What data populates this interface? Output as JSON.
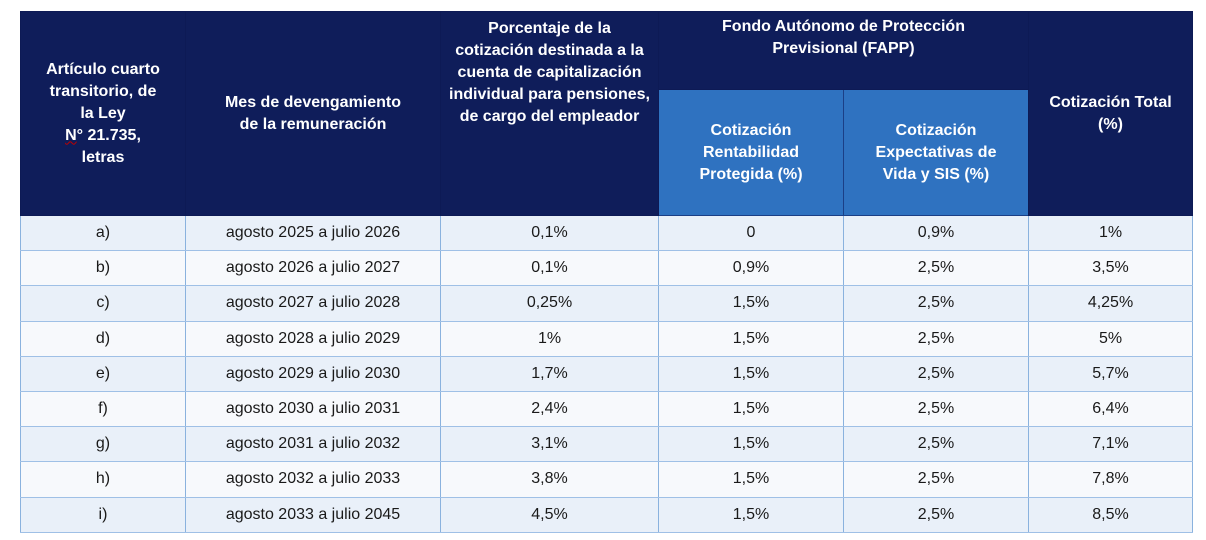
{
  "headers": {
    "col1_line1": "Artículo cuarto",
    "col1_line2": "transitorio, de",
    "col1_line3": "la Ley",
    "col1_line4_prefix": "N",
    "col1_line4_rest": "° 21.735,",
    "col1_line5": "letras",
    "col2": "Mes de devengamiento de la remuneración",
    "col3": "Porcentaje de la cotización destinada a la cuenta de capitalización individual para pensiones, de cargo del empleador",
    "fapp_group": "Fondo Autónomo de Protección Previsional (FAPP)",
    "fapp_sub1": "Cotización Rentabilidad Protegida (%)",
    "fapp_sub2": "Cotización Expectativas de Vida y SIS (%)",
    "total": "Cotización Total (%)"
  },
  "rows": [
    {
      "letra": "a)",
      "mes": "agosto 2025 a julio 2026",
      "empleador": "0,1%",
      "rentabilidad": "0",
      "expectativas": "0,9%",
      "total": "1%"
    },
    {
      "letra": "b)",
      "mes": "agosto 2026 a julio 2027",
      "empleador": "0,1%",
      "rentabilidad": "0,9%",
      "expectativas": "2,5%",
      "total": "3,5%"
    },
    {
      "letra": "c)",
      "mes": "agosto 2027 a julio 2028",
      "empleador": "0,25%",
      "rentabilidad": "1,5%",
      "expectativas": "2,5%",
      "total": "4,25%"
    },
    {
      "letra": "d)",
      "mes": "agosto 2028 a julio 2029",
      "empleador": "1%",
      "rentabilidad": "1,5%",
      "expectativas": "2,5%",
      "total": "5%"
    },
    {
      "letra": "e)",
      "mes": "agosto 2029 a julio 2030",
      "empleador": "1,7%",
      "rentabilidad": "1,5%",
      "expectativas": "2,5%",
      "total": "5,7%"
    },
    {
      "letra": "f)",
      "mes": "agosto 2030 a julio 2031",
      "empleador": "2,4%",
      "rentabilidad": "1,5%",
      "expectativas": "2,5%",
      "total": "6,4%"
    },
    {
      "letra": "g)",
      "mes": "agosto 2031 a julio 2032",
      "empleador": "3,1%",
      "rentabilidad": "1,5%",
      "expectativas": "2,5%",
      "total": "7,1%"
    },
    {
      "letra": "h)",
      "mes": "agosto 2032 a julio 2033",
      "empleador": "3,8%",
      "rentabilidad": "1,5%",
      "expectativas": "2,5%",
      "total": "7,8%"
    },
    {
      "letra": "i)",
      "mes": "agosto 2033 a julio 2045",
      "empleador": "4,5%",
      "rentabilidad": "1,5%",
      "expectativas": "2,5%",
      "total": "8,5%"
    }
  ],
  "colors": {
    "header_dark": "#0f1d5a",
    "header_light": "#2f72c0",
    "row_odd": "#e9f0f9",
    "row_even": "#f7f9fc",
    "grid_line": "#8ab2de"
  }
}
